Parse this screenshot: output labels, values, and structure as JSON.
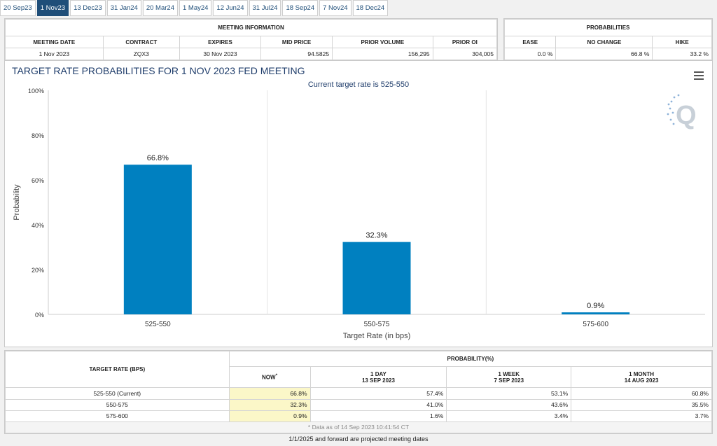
{
  "tabs": [
    "20 Sep23",
    "1 Nov23",
    "13 Dec23",
    "31 Jan24",
    "20 Mar24",
    "1 May24",
    "12 Jun24",
    "31 Jul24",
    "18 Sep24",
    "7 Nov24",
    "18 Dec24"
  ],
  "active_tab": 1,
  "meeting_info": {
    "title": "MEETING INFORMATION",
    "headers": [
      "MEETING DATE",
      "CONTRACT",
      "EXPIRES",
      "MID PRICE",
      "PRIOR VOLUME",
      "PRIOR OI"
    ],
    "values": [
      "1 Nov 2023",
      "ZQX3",
      "30 Nov 2023",
      "94.5825",
      "156,295",
      "304,005"
    ]
  },
  "probabilities": {
    "title": "PROBABILITIES",
    "headers": [
      "EASE",
      "NO CHANGE",
      "HIKE"
    ],
    "values": [
      "0.0 %",
      "66.8 %",
      "33.2 %"
    ]
  },
  "chart_data": {
    "type": "bar",
    "title": "TARGET RATE PROBABILITIES FOR 1 NOV 2023 FED MEETING",
    "subtitle": "Current target rate is 525-550",
    "xlabel": "Target Rate (in bps)",
    "ylabel": "Probability",
    "categories": [
      "525-550",
      "550-575",
      "575-600"
    ],
    "values": [
      66.8,
      32.3,
      0.9
    ],
    "data_labels": [
      "66.8%",
      "32.3%",
      "0.9%"
    ],
    "ylim": [
      0,
      100
    ],
    "yticks": [
      0,
      20,
      40,
      60,
      80,
      100
    ],
    "ytick_labels": [
      "0%",
      "20%",
      "40%",
      "60%",
      "80%",
      "100%"
    ],
    "bar_color": "#0080c0",
    "grid": "vertical"
  },
  "prob_table": {
    "rate_header": "TARGET RATE (BPS)",
    "prob_header": "PROBABILITY(%)",
    "col_now": "NOW",
    "col_now_mark": "*",
    "col_1day": [
      "1 DAY",
      "13 SEP 2023"
    ],
    "col_1week": [
      "1 WEEK",
      "7 SEP 2023"
    ],
    "col_1month": [
      "1 MONTH",
      "14 AUG 2023"
    ],
    "rows": [
      {
        "rate": "525-550 (Current)",
        "now": "66.8%",
        "day": "57.4%",
        "week": "53.1%",
        "month": "60.8%"
      },
      {
        "rate": "550-575",
        "now": "32.3%",
        "day": "41.0%",
        "week": "43.6%",
        "month": "35.5%"
      },
      {
        "rate": "575-600",
        "now": "0.9%",
        "day": "1.6%",
        "week": "3.4%",
        "month": "3.7%"
      }
    ],
    "data_note": "* Data as of 14 Sep 2023 10:41:54 CT"
  },
  "footnote": "1/1/2025 and forward are projected meeting dates",
  "colors": {
    "accent": "#1f4e79",
    "title": "#1f3d6b",
    "highlight": "#fbf7c8"
  }
}
